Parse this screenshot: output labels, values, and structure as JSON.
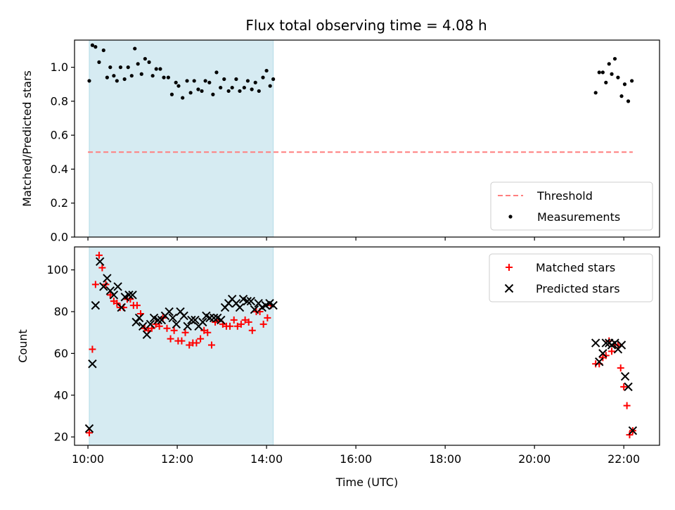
{
  "chart_data": [
    {
      "type": "scatter",
      "title": "Flux total observing time = 4.08 h",
      "xlabel": "",
      "ylabel": "Matched/Predicted stars",
      "xlim": [
        9.7,
        22.8
      ],
      "ylim": [
        0.0,
        1.16
      ],
      "yticks": [
        0.0,
        0.2,
        0.4,
        0.6,
        0.8,
        1.0
      ],
      "shaded_interval": [
        10.03,
        14.15
      ],
      "shade_color": "#add8e6",
      "legend_position": "lower right",
      "threshold": {
        "name": "Threshold",
        "value": 0.5,
        "x_range": [
          10.0,
          22.2
        ],
        "color": "#ff7f7f"
      },
      "series": [
        {
          "name": "Measurements",
          "marker": "dot",
          "color": "#000000",
          "x": [
            10.03,
            10.1,
            10.17,
            10.25,
            10.35,
            10.43,
            10.5,
            10.58,
            10.65,
            10.73,
            10.82,
            10.9,
            10.98,
            11.05,
            11.12,
            11.2,
            11.28,
            11.37,
            11.45,
            11.53,
            11.62,
            11.7,
            11.8,
            11.88,
            11.97,
            12.03,
            12.12,
            12.22,
            12.3,
            12.38,
            12.47,
            12.55,
            12.63,
            12.72,
            12.8,
            12.88,
            12.97,
            13.05,
            13.15,
            13.23,
            13.32,
            13.4,
            13.5,
            13.58,
            13.67,
            13.75,
            13.83,
            13.92,
            14.0,
            14.08,
            14.15,
            21.37,
            21.45,
            21.53,
            21.6,
            21.67,
            21.73,
            21.8,
            21.87,
            21.95,
            22.02,
            22.1,
            22.18
          ],
          "y": [
            0.92,
            1.13,
            1.12,
            1.03,
            1.1,
            0.94,
            1.0,
            0.95,
            0.92,
            1.0,
            0.93,
            1.0,
            0.95,
            1.11,
            1.02,
            0.96,
            1.05,
            1.03,
            0.95,
            0.99,
            0.99,
            0.94,
            0.94,
            0.84,
            0.91,
            0.89,
            0.82,
            0.92,
            0.85,
            0.92,
            0.87,
            0.86,
            0.92,
            0.91,
            0.84,
            0.97,
            0.88,
            0.93,
            0.86,
            0.88,
            0.93,
            0.86,
            0.88,
            0.92,
            0.87,
            0.91,
            0.86,
            0.94,
            0.98,
            0.89,
            0.93,
            0.85,
            0.97,
            0.97,
            0.91,
            1.02,
            0.96,
            1.05,
            0.94,
            0.83,
            0.9,
            0.8,
            0.92
          ]
        }
      ]
    },
    {
      "type": "scatter",
      "title": "",
      "xlabel": "Time (UTC)",
      "ylabel": "Count",
      "xlim": [
        9.7,
        22.8
      ],
      "ylim": [
        16,
        111
      ],
      "yticks": [
        20,
        40,
        60,
        80,
        100
      ],
      "xticks": [
        10,
        12,
        14,
        16,
        18,
        20,
        22
      ],
      "xtick_labels": [
        "10:00",
        "12:00",
        "14:00",
        "16:00",
        "18:00",
        "20:00",
        "22:00"
      ],
      "shaded_interval": [
        10.03,
        14.15
      ],
      "shade_color": "#add8e6",
      "legend_position": "upper right",
      "series": [
        {
          "name": "Matched stars",
          "marker": "plus",
          "color": "#ff0000",
          "x": [
            10.03,
            10.1,
            10.17,
            10.25,
            10.32,
            10.4,
            10.5,
            10.58,
            10.65,
            10.72,
            10.8,
            10.88,
            10.95,
            11.02,
            11.1,
            11.18,
            11.27,
            11.35,
            11.43,
            11.52,
            11.6,
            11.68,
            11.77,
            11.85,
            11.93,
            12.02,
            12.1,
            12.18,
            12.27,
            12.35,
            12.43,
            12.52,
            12.6,
            12.68,
            12.77,
            12.85,
            12.93,
            13.02,
            13.1,
            13.18,
            13.27,
            13.35,
            13.43,
            13.52,
            13.6,
            13.68,
            13.77,
            13.85,
            13.93,
            14.02,
            14.1,
            21.37,
            21.45,
            21.53,
            21.6,
            21.67,
            21.73,
            21.8,
            21.87,
            21.93,
            22.0,
            22.07,
            22.13,
            22.2
          ],
          "y": [
            22,
            62,
            93,
            107,
            101,
            93,
            88,
            85,
            84,
            82,
            82,
            86,
            86,
            83,
            83,
            79,
            72,
            71,
            72,
            74,
            73,
            77,
            72,
            67,
            71,
            66,
            66,
            70,
            64,
            65,
            65,
            67,
            71,
            70,
            64,
            75,
            76,
            74,
            73,
            73,
            76,
            73,
            74,
            76,
            75,
            71,
            80,
            80,
            74,
            77,
            83,
            55,
            55,
            58,
            59,
            66,
            61,
            64,
            64,
            53,
            44,
            35,
            21,
            23
          ]
        },
        {
          "name": "Predicted stars",
          "marker": "x",
          "color": "#000000",
          "x": [
            10.03,
            10.1,
            10.17,
            10.27,
            10.35,
            10.43,
            10.5,
            10.58,
            10.67,
            10.75,
            10.83,
            10.92,
            11.0,
            11.08,
            11.15,
            11.23,
            11.32,
            11.4,
            11.48,
            11.57,
            11.65,
            11.73,
            11.82,
            11.9,
            11.98,
            12.07,
            12.15,
            12.23,
            12.32,
            12.4,
            12.48,
            12.57,
            12.65,
            12.73,
            12.82,
            12.9,
            12.98,
            13.07,
            13.15,
            13.23,
            13.32,
            13.4,
            13.48,
            13.57,
            13.65,
            13.73,
            13.82,
            13.9,
            13.98,
            14.07,
            14.15,
            21.37,
            21.45,
            21.53,
            21.6,
            21.67,
            21.73,
            21.8,
            21.87,
            21.95,
            22.03,
            22.1,
            22.2
          ],
          "y": [
            24,
            55,
            83,
            104,
            92,
            96,
            90,
            88,
            92,
            82,
            87,
            88,
            88,
            75,
            77,
            73,
            69,
            74,
            77,
            76,
            76,
            78,
            80,
            77,
            74,
            80,
            78,
            73,
            76,
            76,
            73,
            75,
            78,
            77,
            77,
            77,
            76,
            82,
            84,
            86,
            84,
            82,
            86,
            85,
            85,
            81,
            84,
            82,
            83,
            84,
            83,
            65,
            56,
            60,
            65,
            65,
            64,
            65,
            62,
            64,
            49,
            44,
            23
          ]
        }
      ]
    }
  ]
}
